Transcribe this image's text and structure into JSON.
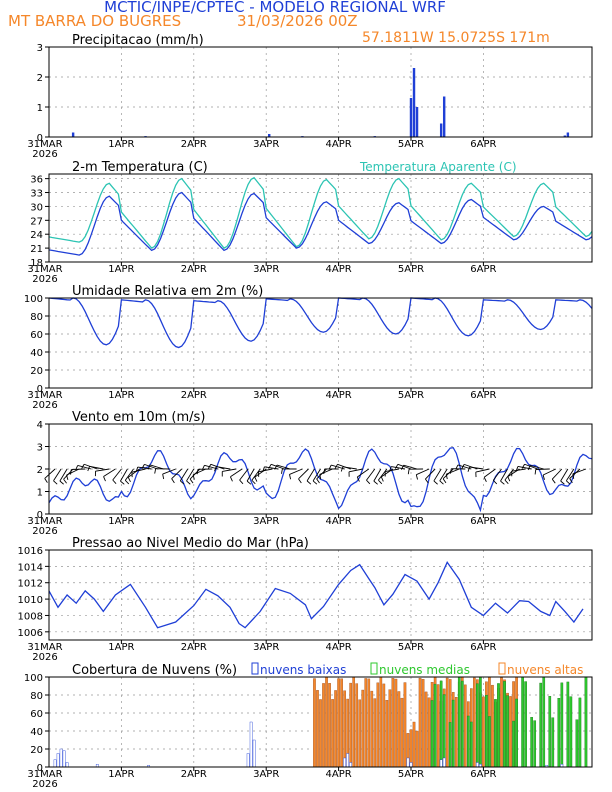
{
  "header": {
    "title": "MCTIC/INPE/CPTEC - MODELO REGIONAL WRF",
    "location": "MT BARRA DO BUGRES",
    "run": "31/03/2026 00Z",
    "coords": "57.1811W 15.0725S 171m"
  },
  "colors": {
    "blue": "#1f3fd6",
    "orange": "#f5872a",
    "teal": "#2cc4b3",
    "green": "#2ec82e",
    "black": "#000000"
  },
  "x_labels": {
    "first": "31MAR",
    "year": "2026",
    "days": [
      "1APR",
      "2APR",
      "3APR",
      "4APR",
      "5APR",
      "6APR"
    ]
  },
  "chart_data": [
    {
      "type": "bar",
      "name": "precip",
      "title": "Precipitacao (mm/h)",
      "ylim": [
        0,
        3
      ],
      "yticks": [
        "0",
        "1",
        "2",
        "3"
      ],
      "hours": [
        8,
        32,
        73,
        84,
        108,
        120,
        121,
        122,
        123,
        130,
        131,
        134,
        171,
        172
      ],
      "values": [
        0.15,
        0.03,
        0.1,
        0.03,
        0.03,
        1.3,
        2.3,
        1.0,
        0.0,
        0.45,
        1.35,
        0.0,
        0.05,
        0.15
      ]
    },
    {
      "type": "line",
      "name": "temp",
      "title": "2-m Temperatura (C)",
      "legend": "Temperatura Aparente (C)",
      "ylim": [
        18,
        37
      ],
      "yticks": [
        "18",
        "21",
        "24",
        "27",
        "30",
        "33",
        "36"
      ],
      "series": [
        {
          "name": "Temperatura Aparente",
          "color": "teal",
          "tmin": [
            22.3,
            21.0,
            21.0,
            21.3,
            23.0,
            22.8,
            23.5
          ],
          "tmax": [
            35.0,
            36.0,
            36.2,
            35.8,
            36.0,
            35.0,
            35.0
          ]
        },
        {
          "name": "2-m Temperatura",
          "color": "blue",
          "tmin": [
            19.5,
            20.5,
            20.5,
            21.0,
            22.0,
            22.0,
            22.8
          ],
          "tmax": [
            32.2,
            33.0,
            32.8,
            31.0,
            30.8,
            31.5,
            30.0
          ]
        }
      ]
    },
    {
      "type": "line",
      "name": "rh",
      "title": "Umidade Relativa em 2m (%)",
      "ylim": [
        0,
        100
      ],
      "yticks": [
        "0",
        "20",
        "40",
        "60",
        "80",
        "100"
      ],
      "min": [
        48,
        45,
        52,
        62,
        60,
        58,
        65
      ],
      "max": [
        100,
        98,
        97,
        99,
        100,
        100,
        98
      ]
    },
    {
      "type": "line",
      "name": "wind",
      "title": "Vento em 10m (m/s)",
      "ylim": [
        0,
        4
      ],
      "yticks": [
        "0",
        "1",
        "2",
        "3",
        "4"
      ],
      "speed_min": [
        0.5,
        0.9,
        1.0,
        0.7,
        0.5,
        0.1,
        1.0
      ],
      "speed_max": [
        1.5,
        2.6,
        2.6,
        2.7,
        2.7,
        2.9,
        2.7
      ],
      "barbs": "wind barbs along 2 m/s line"
    },
    {
      "type": "line",
      "name": "pres",
      "title": "Pressao ao Nivel Medio do Mar (hPa)",
      "ylim": [
        1005,
        1016
      ],
      "yticks": [
        "1006",
        "1008",
        "1010",
        "1012",
        "1014",
        "1016"
      ],
      "points": [
        [
          0,
          1011
        ],
        [
          3,
          1009
        ],
        [
          6,
          1010.5
        ],
        [
          9,
          1009.5
        ],
        [
          12,
          1011
        ],
        [
          15,
          1010
        ],
        [
          18,
          1008.5
        ],
        [
          22,
          1010.5
        ],
        [
          27,
          1011.8
        ],
        [
          32,
          1009
        ],
        [
          36,
          1006.5
        ],
        [
          42,
          1007.2
        ],
        [
          48,
          1009.2
        ],
        [
          52,
          1011.2
        ],
        [
          56,
          1010.4
        ],
        [
          60,
          1009
        ],
        [
          63,
          1007
        ],
        [
          65,
          1006.5
        ],
        [
          70,
          1008.5
        ],
        [
          75,
          1011.3
        ],
        [
          80,
          1010.7
        ],
        [
          85,
          1009.3
        ],
        [
          87,
          1007.6
        ],
        [
          91,
          1009.1
        ],
        [
          96,
          1011.8
        ],
        [
          100,
          1013.5
        ],
        [
          103,
          1014.2
        ],
        [
          106,
          1012.5
        ],
        [
          108,
          1011.4
        ],
        [
          111,
          1009.3
        ],
        [
          114,
          1010.6
        ],
        [
          118,
          1013
        ],
        [
          122,
          1012.2
        ],
        [
          126,
          1010
        ],
        [
          129,
          1012
        ],
        [
          132,
          1014.5
        ],
        [
          136,
          1012.4
        ],
        [
          140,
          1009
        ],
        [
          144,
          1008
        ],
        [
          148,
          1009.5
        ],
        [
          152,
          1008.3
        ],
        [
          156,
          1009.8
        ],
        [
          159,
          1009.7
        ],
        [
          163,
          1008.5
        ],
        [
          166,
          1008
        ],
        [
          168,
          1009.7
        ],
        [
          171,
          1008.5
        ],
        [
          174,
          1007.2
        ],
        [
          177,
          1008.8
        ]
      ]
    },
    {
      "type": "bar",
      "name": "clouds",
      "title": "Cobertura de Nuvens (%)",
      "ylim": [
        0,
        100
      ],
      "yticks": [
        "0",
        "20",
        "40",
        "60",
        "80",
        "100"
      ],
      "legend": [
        "nuvens baixas",
        "nuvens medias",
        "nuvens altas"
      ],
      "low_points": [
        [
          2,
          8
        ],
        [
          3,
          15
        ],
        [
          4,
          20
        ],
        [
          5,
          18
        ],
        [
          6,
          5
        ],
        [
          16,
          3
        ],
        [
          33,
          2
        ],
        [
          66,
          15
        ],
        [
          67,
          50
        ],
        [
          68,
          30
        ],
        [
          98,
          10
        ],
        [
          99,
          15
        ],
        [
          100,
          5
        ],
        [
          119,
          10
        ],
        [
          120,
          5
        ],
        [
          130,
          8
        ],
        [
          131,
          10
        ],
        [
          142,
          5
        ],
        [
          143,
          3
        ],
        [
          165,
          2
        ],
        [
          170,
          3
        ]
      ],
      "high_range": [
        88,
        155
      ],
      "mid_range": [
        126,
        178
      ]
    }
  ]
}
